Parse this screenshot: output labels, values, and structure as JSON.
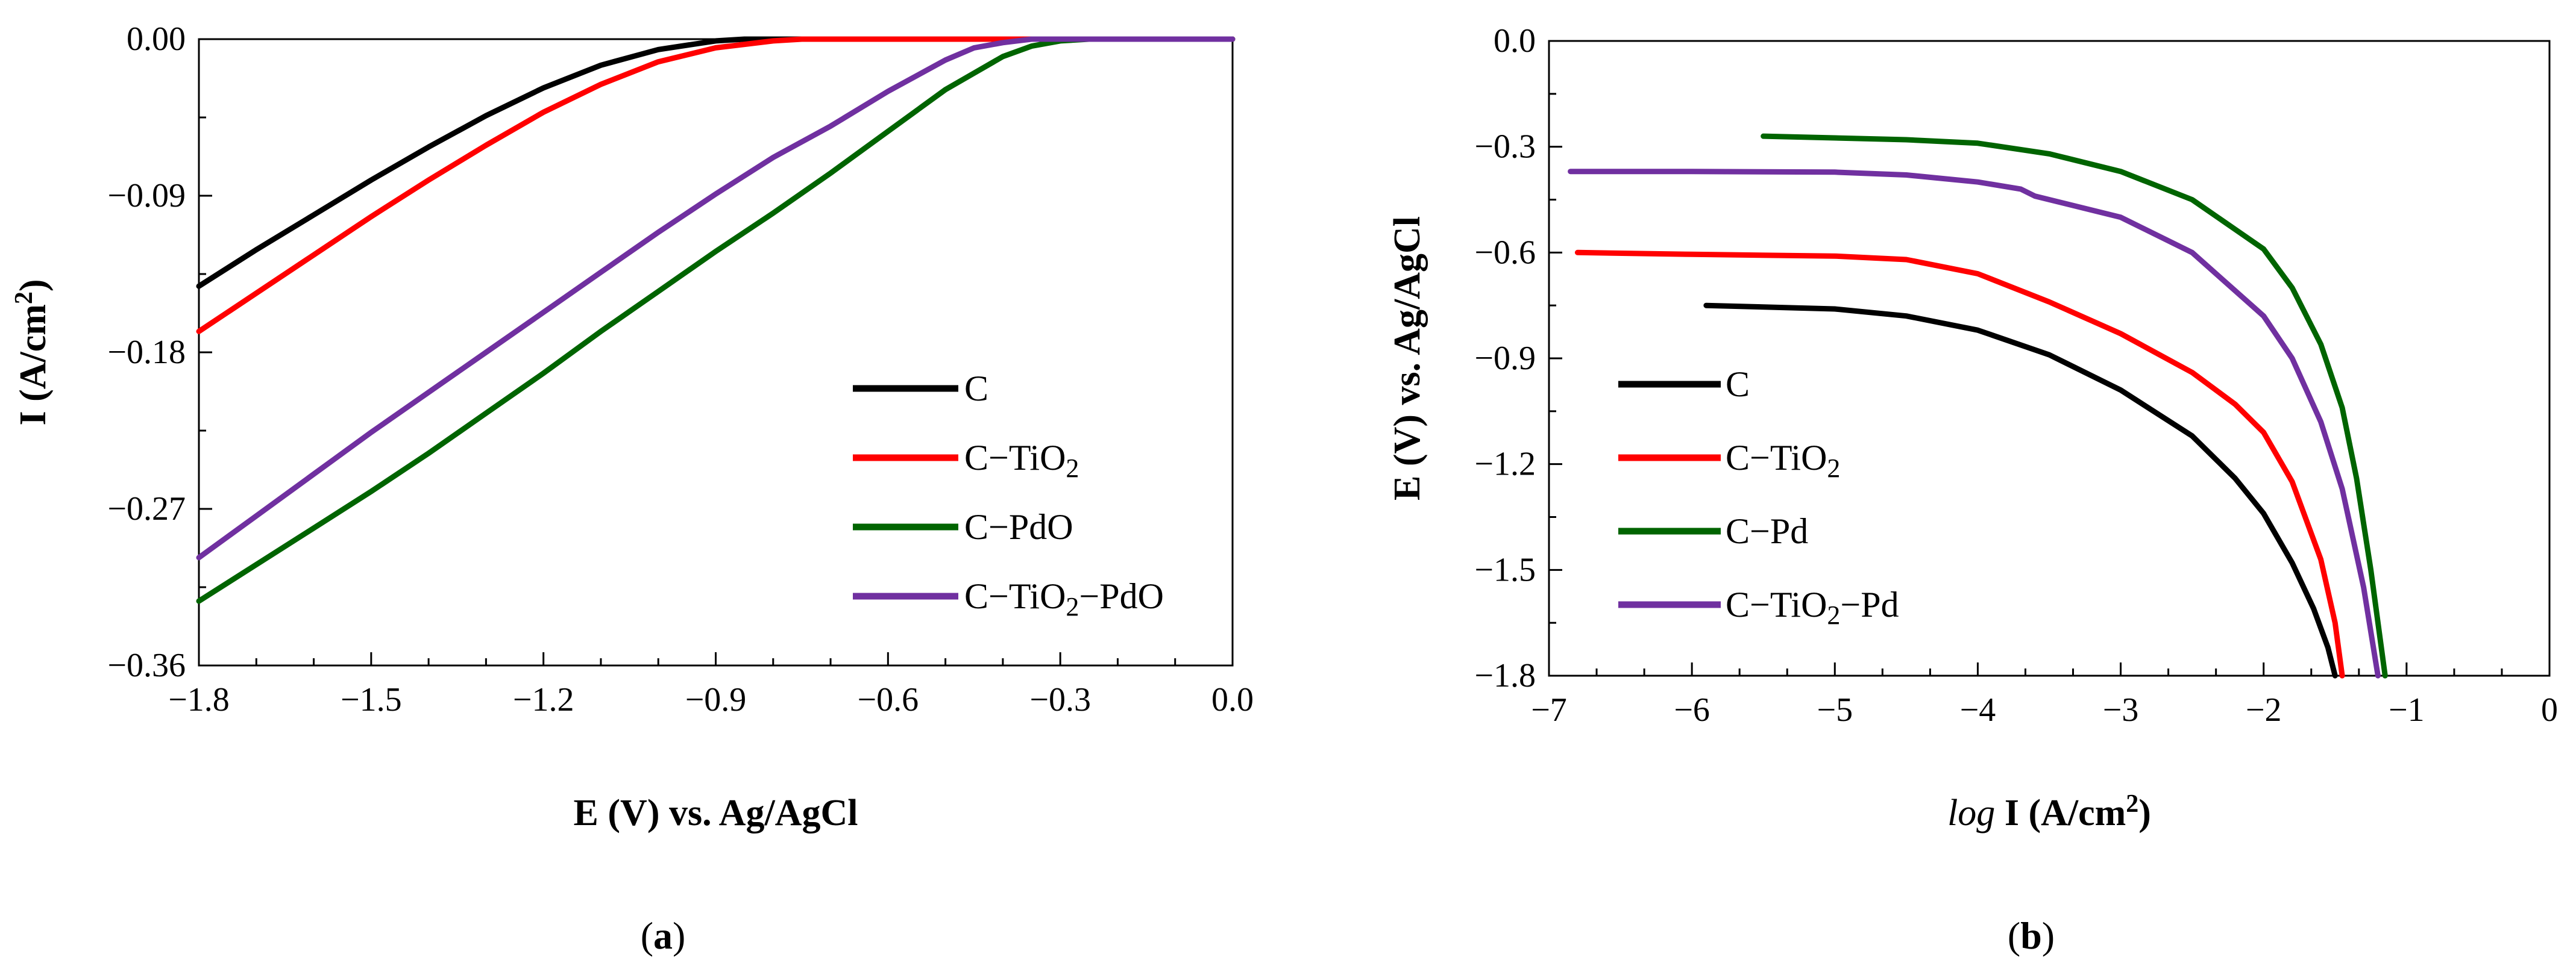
{
  "colors": {
    "C": "#000000",
    "C-TiO2": "#ff0000",
    "C-PdO": "#006400",
    "C-TiO2-PdO": "#7030a0"
  },
  "chart_data": [
    {
      "type": "line",
      "panel_label": "a",
      "xlabel": "E (V) vs. Ag/AgCl",
      "ylabel": {
        "main": "I (A/cm",
        "sup": "2",
        "close": ")"
      },
      "xlim": [
        -1.8,
        0.0
      ],
      "ylim": [
        -0.36,
        0.0
      ],
      "xticks": [
        -1.8,
        -1.5,
        -1.2,
        -0.9,
        -0.6,
        -0.3,
        0.0
      ],
      "xtick_labels": [
        "−1.8",
        "−1.5",
        "−1.2",
        "−0.9",
        "−0.6",
        "−0.3",
        "0.0"
      ],
      "yticks": [
        0.0,
        -0.09,
        -0.18,
        -0.27,
        -0.36
      ],
      "ytick_labels": [
        "0.00",
        "−0.09",
        "−0.18",
        "−0.27",
        "−0.36"
      ],
      "legend_position": "bottom-right",
      "series": [
        {
          "key": "C",
          "parts": [
            "C"
          ],
          "x": [
            -1.8,
            -1.7,
            -1.6,
            -1.5,
            -1.4,
            -1.3,
            -1.2,
            -1.1,
            -1.0,
            -0.9,
            -0.85,
            -0.8,
            0.0
          ],
          "y": [
            -0.142,
            -0.121,
            -0.101,
            -0.081,
            -0.062,
            -0.044,
            -0.028,
            -0.015,
            -0.006,
            -0.001,
            0.0,
            0.0,
            0.0
          ]
        },
        {
          "key": "C-TiO2",
          "parts": [
            "C−TiO",
            "2",
            ""
          ],
          "x": [
            -1.8,
            -1.7,
            -1.6,
            -1.5,
            -1.4,
            -1.3,
            -1.2,
            -1.1,
            -1.0,
            -0.9,
            -0.8,
            -0.75,
            -0.7,
            0.0
          ],
          "y": [
            -0.168,
            -0.146,
            -0.124,
            -0.102,
            -0.081,
            -0.061,
            -0.042,
            -0.026,
            -0.013,
            -0.005,
            -0.001,
            0.0,
            0.0,
            0.0
          ]
        },
        {
          "key": "C-PdO",
          "parts": [
            "C−PdO"
          ],
          "x": [
            -1.8,
            -1.7,
            -1.6,
            -1.5,
            -1.4,
            -1.3,
            -1.2,
            -1.1,
            -1.0,
            -0.9,
            -0.8,
            -0.7,
            -0.6,
            -0.5,
            -0.4,
            -0.35,
            -0.3,
            -0.25,
            0.0
          ],
          "y": [
            -0.323,
            -0.302,
            -0.281,
            -0.26,
            -0.238,
            -0.215,
            -0.192,
            -0.168,
            -0.145,
            -0.122,
            -0.1,
            -0.077,
            -0.053,
            -0.029,
            -0.01,
            -0.004,
            -0.001,
            0.0,
            0.0
          ]
        },
        {
          "key": "C-TiO2-PdO",
          "parts": [
            "C−TiO",
            "2",
            "−PdO"
          ],
          "x": [
            -1.8,
            -1.7,
            -1.6,
            -1.5,
            -1.4,
            -1.3,
            -1.2,
            -1.1,
            -1.0,
            -0.9,
            -0.8,
            -0.7,
            -0.6,
            -0.5,
            -0.45,
            -0.4,
            -0.35,
            -0.3,
            0.0
          ],
          "y": [
            -0.298,
            -0.274,
            -0.25,
            -0.226,
            -0.203,
            -0.18,
            -0.157,
            -0.134,
            -0.111,
            -0.089,
            -0.068,
            -0.05,
            -0.03,
            -0.012,
            -0.005,
            -0.002,
            0.0,
            0.0,
            0.0
          ]
        }
      ]
    },
    {
      "type": "line",
      "panel_label": "b",
      "xlabel": {
        "italic": "log",
        "main": " I (A/cm",
        "sup": "2",
        "close": ")"
      },
      "ylabel": "E (V) vs. Ag/AgCl",
      "xlim": [
        -7,
        0
      ],
      "ylim": [
        -1.8,
        0.0
      ],
      "xticks": [
        -7,
        -6,
        -5,
        -4,
        -3,
        -2,
        -1,
        0
      ],
      "xtick_labels": [
        "−7",
        "−6",
        "−5",
        "−4",
        "−3",
        "−2",
        "−1",
        "0"
      ],
      "yticks": [
        0.0,
        -0.3,
        -0.6,
        -0.9,
        -1.2,
        -1.5,
        -1.8
      ],
      "ytick_labels": [
        "0.0",
        "−0.3",
        "−0.6",
        "−0.9",
        "−1.2",
        "−1.5",
        "−1.8"
      ],
      "legend_position": "bottom-left",
      "series": [
        {
          "key": "C",
          "parts": [
            "C"
          ],
          "x": [
            -5.9,
            -5.0,
            -4.5,
            -4.0,
            -3.5,
            -3.0,
            -2.5,
            -2.2,
            -2.0,
            -1.8,
            -1.65,
            -1.55,
            -1.5
          ],
          "y": [
            -0.75,
            -0.76,
            -0.78,
            -0.82,
            -0.89,
            -0.99,
            -1.12,
            -1.24,
            -1.34,
            -1.48,
            -1.61,
            -1.72,
            -1.8
          ]
        },
        {
          "key": "C-TiO2",
          "parts": [
            "C−TiO",
            "2",
            ""
          ],
          "x": [
            -6.8,
            -6.0,
            -5.0,
            -4.5,
            -4.0,
            -3.5,
            -3.0,
            -2.5,
            -2.2,
            -2.0,
            -1.8,
            -1.6,
            -1.5,
            -1.45
          ],
          "y": [
            -0.6,
            -0.605,
            -0.61,
            -0.62,
            -0.66,
            -0.74,
            -0.83,
            -0.94,
            -1.03,
            -1.11,
            -1.25,
            -1.47,
            -1.65,
            -1.8
          ]
        },
        {
          "key": "C-PdO",
          "parts": [
            "C−Pd"
          ],
          "x": [
            -5.5,
            -5.0,
            -4.5,
            -4.0,
            -3.5,
            -3.0,
            -2.5,
            -2.0,
            -1.8,
            -1.6,
            -1.45,
            -1.35,
            -1.25,
            -1.15
          ],
          "y": [
            -0.27,
            -0.275,
            -0.28,
            -0.29,
            -0.32,
            -0.37,
            -0.45,
            -0.59,
            -0.7,
            -0.86,
            -1.04,
            -1.24,
            -1.5,
            -1.8
          ]
        },
        {
          "key": "C-TiO2-PdO",
          "parts": [
            "C−TiO",
            "2",
            "−Pd"
          ],
          "x": [
            -6.85,
            -6.0,
            -5.0,
            -4.5,
            -4.0,
            -3.7,
            -3.6,
            -3.0,
            -2.5,
            -2.0,
            -1.8,
            -1.6,
            -1.45,
            -1.3,
            -1.2
          ],
          "y": [
            -0.37,
            -0.37,
            -0.372,
            -0.38,
            -0.4,
            -0.42,
            -0.44,
            -0.5,
            -0.6,
            -0.78,
            -0.9,
            -1.08,
            -1.27,
            -1.55,
            -1.8
          ]
        }
      ]
    }
  ]
}
